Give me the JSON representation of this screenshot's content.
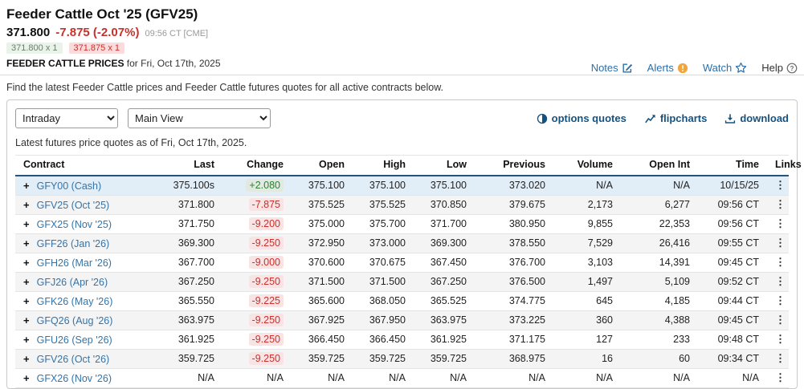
{
  "header": {
    "title": "Feeder Cattle Oct '25 (GFV25)",
    "last_price": "371.800",
    "change": "-7.875 (-2.07%)",
    "quote_time": "09:56 CT [CME]",
    "bid_size": "371.800 x 1",
    "ask_size": "371.875 x 1",
    "prices_label": "FEEDER CATTLE PRICES",
    "prices_date": " for Fri, Oct 17th, 2025",
    "links": [
      {
        "label": "Notes",
        "icon": "notes-icon"
      },
      {
        "label": "Alerts",
        "icon": "alerts-icon"
      },
      {
        "label": "Watch",
        "icon": "watch-icon"
      },
      {
        "label": "Help",
        "icon": "help-icon"
      }
    ]
  },
  "intro": "Find the latest Feeder Cattle prices and Feeder Cattle futures quotes for all active contracts below.",
  "toolbar": {
    "timeframe_value": "Intraday",
    "view_value": "Main View",
    "actions": [
      {
        "label": "options quotes",
        "icon": "options-quotes-icon"
      },
      {
        "label": "flipcharts",
        "icon": "flipcharts-icon"
      },
      {
        "label": "download",
        "icon": "download-icon"
      }
    ]
  },
  "quotes_note": "Latest futures price quotes as of Fri, Oct 17th, 2025.",
  "table": {
    "columns": [
      "Contract",
      "Last",
      "Change",
      "Open",
      "High",
      "Low",
      "Previous",
      "Volume",
      "Open Int",
      "Time",
      "Links"
    ],
    "rows": [
      {
        "contract": "GFY00 (Cash)",
        "last": "375.100s",
        "change": "+2.080",
        "dir": "up",
        "open": "375.100",
        "high": "375.100",
        "low": "375.100",
        "previous": "373.020",
        "volume": "N/A",
        "open_int": "N/A",
        "time": "10/15/25",
        "cash": true
      },
      {
        "contract": "GFV25 (Oct '25)",
        "last": "371.800",
        "change": "-7.875",
        "dir": "down",
        "open": "375.525",
        "high": "375.525",
        "low": "370.850",
        "previous": "379.675",
        "volume": "2,173",
        "open_int": "6,277",
        "time": "09:56 CT"
      },
      {
        "contract": "GFX25 (Nov '25)",
        "last": "371.750",
        "change": "-9.200",
        "dir": "down",
        "open": "375.000",
        "high": "375.700",
        "low": "371.700",
        "previous": "380.950",
        "volume": "9,855",
        "open_int": "22,353",
        "time": "09:56 CT"
      },
      {
        "contract": "GFF26 (Jan '26)",
        "last": "369.300",
        "change": "-9.250",
        "dir": "down",
        "open": "372.950",
        "high": "373.000",
        "low": "369.300",
        "previous": "378.550",
        "volume": "7,529",
        "open_int": "26,416",
        "time": "09:55 CT"
      },
      {
        "contract": "GFH26 (Mar '26)",
        "last": "367.700",
        "change": "-9.000",
        "dir": "down",
        "open": "370.600",
        "high": "370.675",
        "low": "367.450",
        "previous": "376.700",
        "volume": "3,103",
        "open_int": "14,391",
        "time": "09:45 CT"
      },
      {
        "contract": "GFJ26 (Apr '26)",
        "last": "367.250",
        "change": "-9.250",
        "dir": "down",
        "open": "371.500",
        "high": "371.500",
        "low": "367.250",
        "previous": "376.500",
        "volume": "1,497",
        "open_int": "5,109",
        "time": "09:52 CT"
      },
      {
        "contract": "GFK26 (May '26)",
        "last": "365.550",
        "change": "-9.225",
        "dir": "down",
        "open": "365.600",
        "high": "368.050",
        "low": "365.525",
        "previous": "374.775",
        "volume": "645",
        "open_int": "4,185",
        "time": "09:44 CT"
      },
      {
        "contract": "GFQ26 (Aug '26)",
        "last": "363.975",
        "change": "-9.250",
        "dir": "down",
        "open": "367.925",
        "high": "367.950",
        "low": "363.975",
        "previous": "373.225",
        "volume": "360",
        "open_int": "4,388",
        "time": "09:45 CT"
      },
      {
        "contract": "GFU26 (Sep '26)",
        "last": "361.925",
        "change": "-9.250",
        "dir": "down",
        "open": "366.450",
        "high": "366.450",
        "low": "361.925",
        "previous": "371.175",
        "volume": "127",
        "open_int": "233",
        "time": "09:48 CT"
      },
      {
        "contract": "GFV26 (Oct '26)",
        "last": "359.725",
        "change": "-9.250",
        "dir": "down",
        "open": "359.725",
        "high": "359.725",
        "low": "359.725",
        "previous": "368.975",
        "volume": "16",
        "open_int": "60",
        "time": "09:34 CT"
      },
      {
        "contract": "GFX26 (Nov '26)",
        "last": "N/A",
        "change": "N/A",
        "dir": "none",
        "open": "N/A",
        "high": "N/A",
        "low": "N/A",
        "previous": "N/A",
        "volume": "N/A",
        "open_int": "N/A",
        "time": "N/A"
      }
    ]
  },
  "colors": {
    "link_blue": "#2970af",
    "action_navy": "#15527f",
    "negative_red": "#c9302c",
    "positive_green": "#2d8032",
    "alert_orange": "#f0a63c",
    "cash_row_bg": "#e2eef7",
    "alt_row_bg": "#f4f4f4"
  }
}
